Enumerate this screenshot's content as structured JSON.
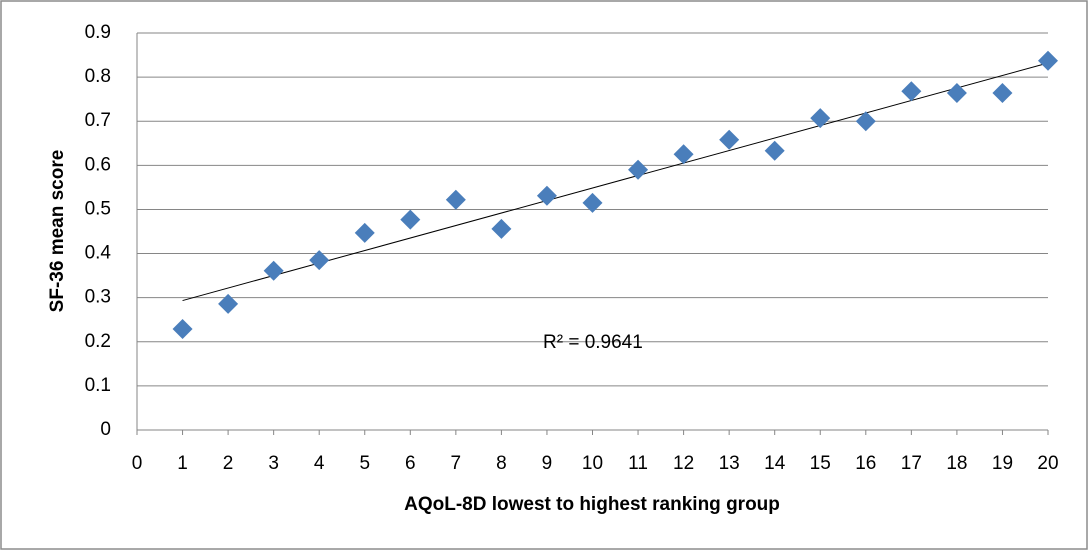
{
  "chart_data": {
    "type": "scatter",
    "x_label": "AQoL-8D lowest to highest ranking group",
    "y_label": "SF-36 mean score",
    "annotation": "R² = 0.9641",
    "trendline": "linear",
    "color": "#4a7ebb",
    "x": [
      1,
      2,
      3,
      4,
      5,
      6,
      7,
      8,
      9,
      10,
      11,
      12,
      13,
      14,
      15,
      16,
      17,
      18,
      19,
      20
    ],
    "values": [
      0.229,
      0.286,
      0.361,
      0.385,
      0.447,
      0.477,
      0.522,
      0.456,
      0.531,
      0.515,
      0.59,
      0.625,
      0.658,
      0.633,
      0.707,
      0.7,
      0.768,
      0.764,
      0.764,
      0.837
    ],
    "xlim": [
      0,
      20
    ],
    "xticks": [
      0,
      1,
      2,
      3,
      4,
      5,
      6,
      7,
      8,
      9,
      10,
      11,
      12,
      13,
      14,
      15,
      16,
      17,
      18,
      19,
      20
    ],
    "ylim": [
      0,
      0.9
    ],
    "yticks": [
      0,
      0.1,
      0.2,
      0.3,
      0.4,
      0.5,
      0.6,
      0.7,
      0.8,
      0.9
    ],
    "grid": true
  }
}
